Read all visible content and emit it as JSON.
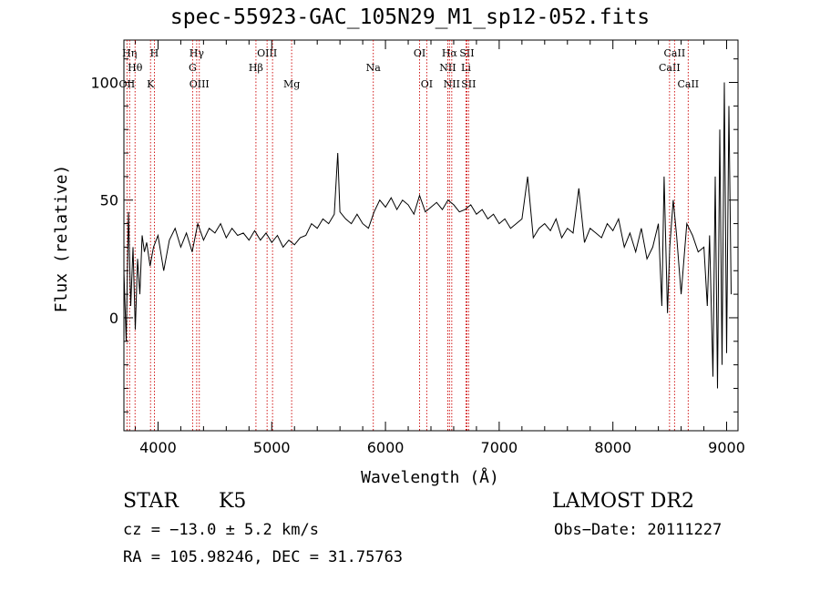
{
  "chart_data": {
    "type": "line",
    "title": "spec-55923-GAC_105N29_M1_sp12-052.fits",
    "xlabel": "Wavelength (Å)",
    "ylabel": "Flux (relative)",
    "xlim": [
      3700,
      9100
    ],
    "ylim": [
      -48,
      118
    ],
    "xticks": [
      "4000",
      "5000",
      "6000",
      "7000",
      "8000",
      "9000"
    ],
    "xtick_values": [
      4000,
      5000,
      6000,
      7000,
      8000,
      9000
    ],
    "yticks": [
      "0",
      "50",
      "100"
    ],
    "ytick_values": [
      0,
      50,
      100
    ],
    "series": [
      {
        "x": [
          3700,
          3720,
          3740,
          3760,
          3780,
          3800,
          3820,
          3840,
          3860,
          3880,
          3900,
          3930,
          3960,
          4000,
          4050,
          4100,
          4150,
          4200,
          4250,
          4300,
          4350,
          4400,
          4450,
          4500,
          4550,
          4600,
          4650,
          4700,
          4750,
          4800,
          4850,
          4900,
          4950,
          5000,
          5050,
          5100,
          5150,
          5200,
          5250,
          5300,
          5350,
          5400,
          5450,
          5500,
          5550,
          5580,
          5600,
          5650,
          5700,
          5750,
          5800,
          5850,
          5900,
          5950,
          6000,
          6050,
          6100,
          6150,
          6200,
          6250,
          6300,
          6350,
          6400,
          6450,
          6500,
          6550,
          6600,
          6650,
          6700,
          6750,
          6800,
          6850,
          6900,
          6950,
          7000,
          7050,
          7100,
          7150,
          7200,
          7250,
          7300,
          7350,
          7400,
          7450,
          7500,
          7550,
          7600,
          7650,
          7700,
          7750,
          7800,
          7850,
          7900,
          7950,
          8000,
          8050,
          8100,
          8150,
          8200,
          8250,
          8300,
          8350,
          8400,
          8430,
          8450,
          8480,
          8500,
          8530,
          8560,
          8600,
          8650,
          8700,
          8750,
          8800,
          8830,
          8850,
          8880,
          8900,
          8920,
          8940,
          8960,
          8980,
          9000,
          9020,
          9040
        ],
        "y": [
          20,
          -10,
          45,
          5,
          30,
          -5,
          25,
          10,
          35,
          28,
          32,
          22,
          30,
          35,
          20,
          33,
          38,
          30,
          36,
          28,
          40,
          33,
          38,
          36,
          40,
          34,
          38,
          35,
          36,
          33,
          37,
          33,
          36,
          32,
          35,
          30,
          33,
          31,
          34,
          35,
          40,
          38,
          42,
          40,
          44,
          70,
          45,
          42,
          40,
          44,
          40,
          38,
          45,
          50,
          47,
          51,
          46,
          50,
          48,
          44,
          52,
          45,
          47,
          49,
          46,
          50,
          48,
          45,
          46,
          48,
          44,
          46,
          42,
          44,
          40,
          42,
          38,
          40,
          42,
          60,
          34,
          38,
          40,
          37,
          42,
          34,
          38,
          36,
          55,
          32,
          38,
          36,
          34,
          40,
          37,
          42,
          30,
          36,
          28,
          38,
          25,
          30,
          40,
          5,
          60,
          2,
          30,
          50,
          35,
          10,
          40,
          35,
          28,
          30,
          5,
          35,
          -25,
          60,
          -30,
          80,
          -20,
          100,
          -15,
          90,
          10
        ]
      }
    ],
    "line_markers": [
      {
        "wavelength": 3750,
        "label": "Hη",
        "row": 1
      },
      {
        "wavelength": 3798,
        "label": "Hθ",
        "row": 2
      },
      {
        "wavelength": 3727,
        "label": "OII",
        "row": 3
      },
      {
        "wavelength": 3934,
        "label": "K",
        "row": 3
      },
      {
        "wavelength": 3968,
        "label": "H",
        "row": 0
      },
      {
        "wavelength": 4340,
        "label": "Hγ",
        "row": 1
      },
      {
        "wavelength": 4304,
        "label": "G",
        "row": 2
      },
      {
        "wavelength": 4363,
        "label": "OIII",
        "row": 3
      },
      {
        "wavelength": 4861,
        "label": "Hβ",
        "row": 2
      },
      {
        "wavelength": 4959,
        "label": "OIII",
        "row": 1
      },
      {
        "wavelength": 5007,
        "label": "",
        "row": 0
      },
      {
        "wavelength": 5175,
        "label": "Mg",
        "row": 3
      },
      {
        "wavelength": 5893,
        "label": "Na",
        "row": 2
      },
      {
        "wavelength": 6300,
        "label": "OI",
        "row": 1
      },
      {
        "wavelength": 6363,
        "label": "OI",
        "row": 3
      },
      {
        "wavelength": 6563,
        "label": "Hα",
        "row": 1
      },
      {
        "wavelength": 6548,
        "label": "NII",
        "row": 2
      },
      {
        "wavelength": 6583,
        "label": "NII",
        "row": 3
      },
      {
        "wavelength": 6716,
        "label": "SII",
        "row": 1
      },
      {
        "wavelength": 6708,
        "label": "Li",
        "row": 2
      },
      {
        "wavelength": 6731,
        "label": "SII",
        "row": 3
      },
      {
        "wavelength": 8498,
        "label": "CaII",
        "row": 2
      },
      {
        "wavelength": 8542,
        "label": "CaII",
        "row": 1
      },
      {
        "wavelength": 8662,
        "label": "CaII",
        "row": 3
      }
    ],
    "marker_color": "#cc0000",
    "grid": false,
    "legend": "none"
  },
  "footer": {
    "object_class": "STAR",
    "subclass": "K5",
    "survey": "LAMOST DR2",
    "redshift": "cz = −13.0 ± 5.2 km/s",
    "obs_date": "Obs−Date: 20111227",
    "coords": "RA = 105.98246, DEC =  31.75763"
  }
}
